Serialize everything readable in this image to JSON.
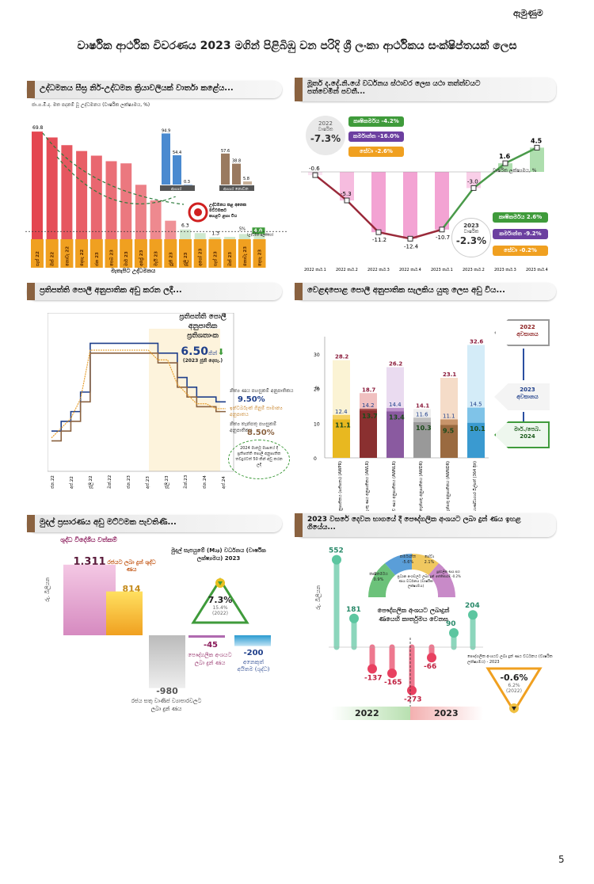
{
  "page": {
    "corner_label": "ඇමුණුම",
    "title": "වාර්ෂික ආර්ථික විවරණය 2023 මගින් පිළිබිඹු වන පරිදි ශ්‍රී ලංකා ආර්ථිකය සංක්ෂිප්තයක් ලෙස",
    "page_number": "5"
  },
  "panel1": {
    "header": "උද්ධමනය සීඝ්‍ර නිර්-උද්ධමන ක්‍රියාවලියක් වාර්තා කළේය...",
    "subtitle": "ජා.ග.මි.ද. මත පදනම් වූ උද්ධමනය (වාර්ෂික ලක්ෂ්‍යමය, %)",
    "inset_overall": "ආහාර",
    "inset_nonfood": "ආහාර නොවන",
    "target_text": "උද්ධමනය කළ අනෙක මට්ටමකට පහළට ළඟා විය",
    "target_label": "5%\n(උද්ධමන ඉලක්කය)",
    "xlabel": "මැතැපිට උද්ධමනය"
  },
  "chart1": {
    "type": "bar",
    "title": "",
    "categories": [
      "සැප් 22",
      "ඔක් 22",
      "නොවැ 22",
      "දෙසැ 22",
      "ජන 23",
      "පෙබ 23",
      "මාර් 23",
      "අප්‍රේ 23",
      "මැයි 23",
      "ජූනි 23",
      "ජූලි 23",
      "අගෝ 23",
      "සැප් 23",
      "ඔක් 23",
      "නොවැ 23",
      "දෙසැ 23"
    ],
    "values": [
      69.8,
      66.0,
      61.0,
      57.2,
      54.2,
      50.6,
      49.2,
      35.3,
      25.2,
      12.0,
      6.3,
      4.0,
      1.3,
      1.5,
      3.4,
      4.0
    ],
    "labels": {
      "first": "69.8",
      "v6": "6.3",
      "v1": "1.3",
      "last": "4.0"
    },
    "ylim": [
      0,
      75
    ],
    "inset": {
      "food": [
        94.9,
        54.4,
        0.3
      ],
      "nonfood": [
        57.6,
        38.8,
        5.8
      ],
      "food_labels": [
        "94.9",
        "54.4",
        "0.3"
      ],
      "nonfood_labels": [
        "57.6",
        "38.8",
        "5.8"
      ]
    }
  },
  "panel2": {
    "header": "මූර්ත ද.දේ.නි.යේ වර්ධනය ස්ථාවර ලෙස යථා තත්ත්වයට පත්වෙමින් පවතී...",
    "box2022": {
      "year": "2022",
      "sub": "වාර්ෂික",
      "value": "-7.3%"
    },
    "box2023": {
      "year": "2023",
      "sub": "වාර්ෂික",
      "value": "-2.3%"
    },
    "sectors2022": [
      {
        "label": "කෘෂිකර්මය -4.2%",
        "color": "#3f9b3b"
      },
      {
        "label": "කර්මාන්ත -16.0%",
        "color": "#6c3fa0"
      },
      {
        "label": "සේවා -2.6%",
        "color": "#f0a020"
      }
    ],
    "sectors2023": [
      {
        "label": "කෘෂිකර්මය 2.6%",
        "color": "#3f9b3b"
      },
      {
        "label": "කර්මාන්ත -9.2%",
        "color": "#6c3fa0"
      },
      {
        "label": "සේවා -0.2%",
        "color": "#f0a020"
      }
    ],
    "legend": "වාර්ෂික ලක්ෂ්‍යමය, %"
  },
  "chart2": {
    "type": "line",
    "categories": [
      "2022 කාර්.1",
      "2022 කාර්.2",
      "2022 කාර්.3",
      "2022 කාර්.4",
      "2023 කාර්.1",
      "2023 කාර්.2",
      "2023 කාර්.3",
      "2023 කාර්.4"
    ],
    "values": [
      -0.6,
      -5.3,
      -11.2,
      -12.4,
      -10.7,
      -3.0,
      1.6,
      4.5
    ],
    "value_labels": [
      "-0.6",
      "-5.3",
      "-11.2",
      "-12.4",
      "-10.7",
      "-3.0",
      "1.6",
      "4.5"
    ],
    "ylim": [
      -13,
      6
    ]
  },
  "panel3": {
    "header": "ප්‍රතිපත්ති පොලී අනුපාතික අඩු කරන ලදී...",
    "box_title": "ප්‍රතිපත්ති පොලී අනුපාතික ප්‍රතිශතාංක",
    "box_value": "6.50",
    "box_unit": "කින්",
    "box_date": "(2023 ජූනි දෙසැ.)",
    "l1": "නිත්‍ය ණය පහසුකම් අනුපාතිකය",
    "l1v": "9.50%",
    "l2": "ඉන්ටර්බැංක් ගිනුම් සාමාන්‍ය අනුපාතය",
    "l3": "නිත්‍ය තැන්පතු පහසුකම් අනුපාතිකය",
    "l3v": "8.50%",
    "note": "2024 මාර්තු මාසයේ දී ප්‍රතිපත්ති පොලී අනුපාතික තවදුරටත් 50 කින් අඩු කරන ලදී",
    "xticks": [
      "ජන.22",
      "අප්.22",
      "ජූලි.22",
      "ඔක්.22",
      "ජන.23",
      "අප්.23",
      "ජූලි.23",
      "ඔක්.23",
      "ජන.24",
      "අප්.24"
    ]
  },
  "chart3": {
    "type": "line",
    "series": [
      {
        "name": "නිත්‍ය ණය පහසුකම් අනුපාතිකය",
        "values": [
          6.5,
          7.5,
          8.5,
          10.5,
          15.5,
          15.5,
          15.5,
          15.5,
          15.5,
          15.5,
          15.5,
          14.5,
          14.5,
          12.0,
          11.0,
          10.0,
          10.0,
          9.5,
          9.5
        ]
      },
      {
        "name": "නිත්‍ය තැන්පතු පහසුකම් අනුපාතිකය",
        "values": [
          5.5,
          6.5,
          7.5,
          9.5,
          14.5,
          14.5,
          14.5,
          14.5,
          14.5,
          14.5,
          14.5,
          13.5,
          13.5,
          11.0,
          10.0,
          9.0,
          9.0,
          8.5,
          8.5
        ]
      }
    ],
    "ylim": [
      4,
      17
    ]
  },
  "panel4": {
    "header": "වෙළඳපොළ පොලී අනුපාතික සැලකිය යුතු ලෙස අඩු විය...",
    "ylabel": "%",
    "callout2022": "2022\nඅවසානය",
    "callout2023": "2023\nඅවසානය",
    "callout2024": "මාර්./පෙබ.\n2024"
  },
  "chart4": {
    "type": "bar",
    "categories": [
      "ප්‍රමුඛ ණය අනුපාතිකය (සතිපතා) (AWPR)",
      "බැංකු ණය අනුපාතිකය (AWLR)",
      "නව ණය අනුපාතිකය (AWNLR)",
      "තැන්පතු අනුපාතිකය (AWDR)",
      "නව තැන්පතු අනුපාතිකය (AWNDR)",
      "රජයේ භාණ්ඩාගාර බිල්පත් (364 දින)"
    ],
    "series": [
      {
        "name": "2022 අවසානය",
        "values": [
          28.2,
          18.7,
          26.2,
          14.1,
          23.1,
          32.6
        ]
      },
      {
        "name": "2023 අවසානය",
        "values": [
          12.4,
          14.2,
          14.4,
          11.6,
          11.1,
          14.5
        ]
      },
      {
        "name": "මාර්./පෙබ. 2024",
        "values": [
          11.1,
          13.7,
          13.4,
          10.3,
          9.5,
          10.1
        ]
      }
    ],
    "labels_top": [
      "28.2",
      "18.7",
      "26.2",
      "14.1",
      "23.1",
      "32.6"
    ],
    "labels_mid": [
      "12.4",
      "14.2",
      "14.4",
      "11.6",
      "11.1",
      "14.5"
    ],
    "labels_low": [
      "11.1",
      "13.7",
      "13.4",
      "10.3",
      "9.5",
      "10.1"
    ],
    "yticks": [
      "0",
      "10",
      "20",
      "30"
    ],
    "ylim": [
      0,
      35
    ]
  },
  "panel5": {
    "header": "මුදල් ප්‍රසාරණය අඩු මට්ටමක පැවතිණි...",
    "ylabel": "රු. බිලියන",
    "b1": "ශුද්ධ විදේශීය වත්කම්",
    "b1v": "1,311",
    "b2": "රජයට ලබා දුන් ශුද්ධ ණය",
    "b2v": "814",
    "b3v": "-980",
    "b3": "රජය සතු වාණිජ ව්‍යාපාරවලට ලබා දුන් ණය",
    "b4v": "-45",
    "b4": "පෞද්ගලික අංශයට ලබා දුන් ණය",
    "b5v": "-200",
    "b5": "අනෙකුත් අයිතම (ශුද්ධ)",
    "m2_title": "මුදල් සැපයුමේ (M₂ᵦ) වර්ධනය (වාර්ෂික ලක්ෂ්‍යමය) 2023",
    "m2_value": "7.3%",
    "m2_prev": "15.4%",
    "m2_prev_year": "(2022)"
  },
  "chart5": {
    "type": "bar",
    "categories": [
      "ශුද්ධ විදේශීය වත්කම්",
      "රජයට ලබා දුන් ශුද්ධ ණය",
      "රජය සතු වාණිජ ව්‍යාපාරවලට ලබා දුන් ණය",
      "පෞද්ගලික අංශයට ලබා දුන් ණය",
      "අනෙකුත් අයිතම (ශුද්ධ)"
    ],
    "values": [
      1311,
      814,
      -980,
      -45,
      -200
    ]
  },
  "panel6": {
    "header": "2023 වසරේ දෙවන භාගයේ දී පෞද්ගලික අංශයට ලබා දුන් ණය ඉහළ ගියේය...",
    "ylabel": "රු. බිලියන",
    "vals": [
      "552",
      "181",
      "-137",
      "-165",
      "-273",
      "-66",
      "90",
      "204"
    ],
    "center_text": "පෞද්ගලික අංශයට ලබාදුන් ණයෙහි කාර්තුමය වෙනස",
    "year1": "2022",
    "year2": "2023",
    "gauge_title": "ප්‍රධාන අංශවලට ලබා දුන් ණය වර්ධනය (වාර්ෂික ලක්ෂ්‍යමය)",
    "g1": "කෘෂිකර්මය\n0.9%",
    "g2": "කර්මාන්ත\n-5.6%",
    "g3": "සේවා\n2.1%",
    "g4": "පුද්ගලික ණය සහ අත්තිකාරම්\n-0.2%",
    "growth_label": "පෞද්ගලික අංශයට ලබා දුන් ණය වර්ධනය (වාර්ෂික ලක්ෂ්‍යමය) - 2023",
    "growth_value": "-0.6%",
    "growth_prev": "6.2%",
    "growth_prev_year": "(2022)"
  },
  "chart6": {
    "type": "bar",
    "categories": [
      "2022 Q1",
      "2022 Q2",
      "2022 Q3",
      "2022 Q4",
      "2023 Q1",
      "2023 Q2",
      "2023 Q3",
      "2023 Q4"
    ],
    "values": [
      552,
      181,
      -137,
      -165,
      -273,
      -66,
      90,
      204
    ]
  }
}
